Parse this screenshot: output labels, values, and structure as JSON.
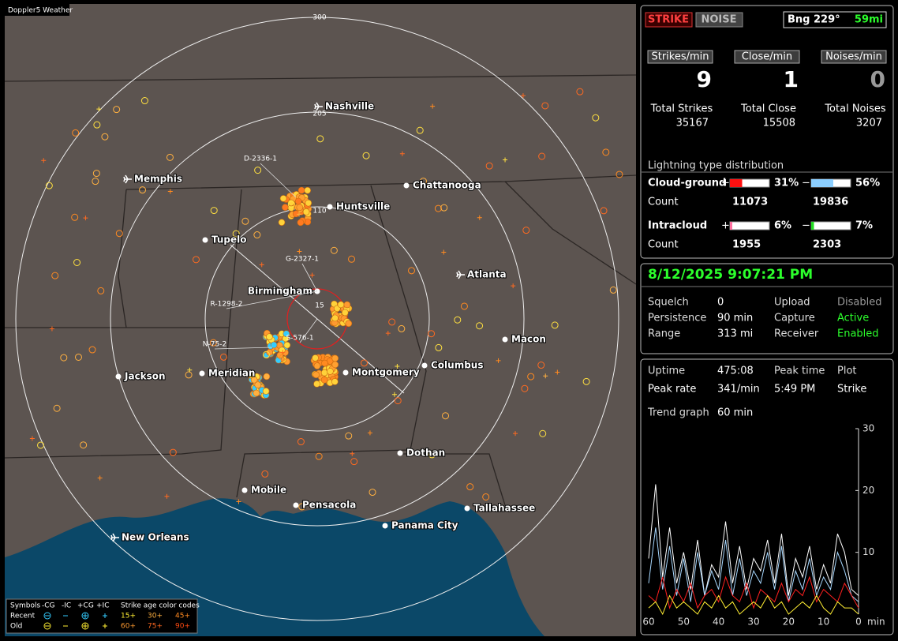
{
  "header": {
    "badge": "Doppler5 Weather"
  },
  "map": {
    "range_rings": [
      "300",
      "205",
      "110",
      "15"
    ],
    "cities": [
      "Nashville",
      "Memphis",
      "Chattanooga",
      "Huntsville",
      "Tupelo",
      "Atlanta",
      "Birmingham",
      "Macon",
      "Jackson",
      "Meridian",
      "Montgomery",
      "Columbus",
      "Dothan",
      "Mobile",
      "Pensacola",
      "Tallahassee",
      "Panama City",
      "New Orleans"
    ],
    "stations": [
      "D-2336-1",
      "G-2327-1",
      "R-1298-2",
      "N-75-2",
      "S-576-1"
    ],
    "legend": {
      "symbols_label": "Symbols",
      "symbol_types": [
        "-CG",
        "-IC",
        "+CG",
        "+IC"
      ],
      "age_label": "Strike age color codes",
      "rows": [
        {
          "label": "Recent",
          "ages": [
            "15+",
            "30+",
            "45+"
          ]
        },
        {
          "label": "Old",
          "ages": [
            "60+",
            "75+",
            "90+"
          ]
        }
      ]
    }
  },
  "status": {
    "strike_button": "STRIKE",
    "noise_button": "NOISE",
    "bearing": "Bng 229°",
    "distance": "59mi",
    "rates": [
      {
        "label": "Strikes/min",
        "value": 9
      },
      {
        "label": "Close/min",
        "value": 1
      },
      {
        "label": "Noises/min",
        "value": 0
      }
    ],
    "totals": [
      {
        "label": "Total Strikes",
        "value": 35167
      },
      {
        "label": "Total Close",
        "value": 15508
      },
      {
        "label": "Total Noises",
        "value": 3207
      }
    ],
    "distribution": {
      "title": "Lightning type distribution",
      "count_label": "Count",
      "plus_sign": "+",
      "minus_sign": "−",
      "rows": [
        {
          "label": "Cloud-ground",
          "plus": {
            "value": 31,
            "label": "31%"
          },
          "minus": {
            "value": 56,
            "label": "56%"
          },
          "plus_count": 11073,
          "minus_count": 19836
        },
        {
          "label": "Intracloud",
          "plus": {
            "value": 6,
            "label": "6%"
          },
          "minus": {
            "value": 7,
            "label": "7%"
          },
          "plus_count": 1955,
          "minus_count": 2303
        }
      ]
    }
  },
  "settings": {
    "datetime": "8/12/2025 9:07:21 PM",
    "rows": [
      [
        "Squelch",
        0,
        "Upload",
        "Disabled"
      ],
      [
        "Persistence",
        "90 min",
        "Capture",
        "Active"
      ],
      [
        "Range",
        "313 mi",
        "Receiver",
        "Enabled"
      ]
    ]
  },
  "stats": {
    "rows": [
      [
        "Uptime",
        "475:08",
        "Peak time",
        "Plot"
      ],
      [
        "Peak rate",
        "341/min",
        "5:49 PM",
        "Strike"
      ]
    ],
    "trend_label": "Trend graph",
    "trend_window": "60 min"
  },
  "trend": {
    "type": "line",
    "x": [
      60,
      58,
      56,
      54,
      52,
      50,
      48,
      46,
      44,
      42,
      40,
      38,
      36,
      34,
      32,
      30,
      28,
      26,
      24,
      22,
      20,
      18,
      16,
      14,
      12,
      10,
      8,
      6,
      4,
      2,
      0
    ],
    "xlim": [
      60,
      0
    ],
    "xticks": [
      60,
      50,
      40,
      30,
      20,
      10,
      0
    ],
    "x_unit": "min",
    "ylim": [
      0,
      30
    ],
    "yticks": [
      10,
      20,
      30
    ],
    "series": [
      {
        "color": "#ffffff",
        "values": [
          9,
          21,
          6,
          14,
          5,
          10,
          4,
          12,
          3,
          8,
          6,
          15,
          5,
          11,
          4,
          9,
          7,
          12,
          5,
          13,
          3,
          9,
          6,
          11,
          4,
          8,
          5,
          13,
          10,
          4,
          3
        ]
      },
      {
        "color": "#a8d8ff",
        "values": [
          5,
          14,
          4,
          11,
          3,
          9,
          2,
          10,
          3,
          7,
          4,
          12,
          3,
          9,
          3,
          7,
          5,
          10,
          4,
          11,
          2,
          7,
          4,
          9,
          3,
          6,
          4,
          10,
          7,
          3,
          2
        ]
      },
      {
        "color": "#ff2020",
        "values": [
          3,
          2,
          6,
          1,
          4,
          2,
          5,
          1,
          3,
          4,
          2,
          6,
          3,
          2,
          5,
          1,
          4,
          3,
          2,
          5,
          2,
          4,
          3,
          6,
          2,
          4,
          3,
          2,
          5,
          3,
          1
        ]
      },
      {
        "color": "#ffee33",
        "values": [
          1,
          2,
          0,
          3,
          1,
          2,
          1,
          0,
          2,
          1,
          3,
          1,
          2,
          0,
          1,
          2,
          1,
          3,
          1,
          2,
          0,
          1,
          2,
          1,
          3,
          1,
          0,
          2,
          1,
          1,
          0
        ]
      }
    ]
  }
}
